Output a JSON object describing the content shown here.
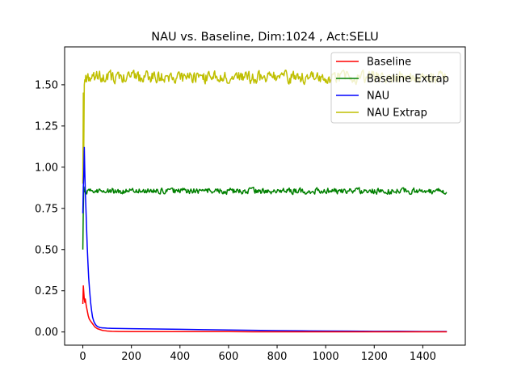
{
  "chart_data": {
    "type": "line",
    "title": "NAU vs. Baseline, Dim:1024 , Act:SELU",
    "xlabel": "",
    "ylabel": "",
    "xlim": [
      -75,
      1575
    ],
    "ylim": [
      -0.08,
      1.73
    ],
    "xticks": [
      0,
      200,
      400,
      600,
      800,
      1000,
      1200,
      1400
    ],
    "yticks": [
      0.0,
      0.25,
      0.5,
      0.75,
      1.0,
      1.25,
      1.5
    ],
    "ytick_labels": [
      "0.00",
      "0.25",
      "0.50",
      "0.75",
      "1.00",
      "1.25",
      "1.50"
    ],
    "grid": false,
    "legend_position": "top-right",
    "series": [
      {
        "name": "Baseline",
        "color": "#ff0000",
        "x": [
          0,
          2,
          4,
          6,
          8,
          10,
          14,
          18,
          22,
          26,
          30,
          35,
          40,
          45,
          50,
          55,
          60,
          70,
          80,
          90,
          100,
          120,
          150,
          200,
          300,
          400,
          500,
          600,
          700,
          800,
          900,
          1000,
          1100,
          1200,
          1300,
          1400,
          1499
        ],
        "y": [
          0.17,
          0.28,
          0.24,
          0.2,
          0.18,
          0.2,
          0.16,
          0.13,
          0.1,
          0.08,
          0.07,
          0.06,
          0.05,
          0.04,
          0.03,
          0.025,
          0.02,
          0.015,
          0.01,
          0.008,
          0.006,
          0.004,
          0.003,
          0.002,
          0.002,
          0.002,
          0.002,
          0.002,
          0.001,
          0.001,
          0.001,
          0.001,
          0.001,
          0.001,
          0.001,
          0.001,
          0.001
        ]
      },
      {
        "name": "Baseline Extrap",
        "color": "#008000",
        "x0": 0,
        "x1": 1499,
        "start_x": [
          0,
          2,
          4,
          6,
          8
        ],
        "start_y": [
          0.5,
          0.75,
          0.88,
          0.86,
          0.85
        ],
        "mean": 0.855,
        "noise_amplitude": 0.025
      },
      {
        "name": "NAU",
        "color": "#0000ff",
        "x": [
          0,
          2,
          4,
          6,
          8,
          10,
          12,
          15,
          18,
          21,
          24,
          28,
          32,
          36,
          40,
          45,
          50,
          55,
          60,
          65,
          70,
          80,
          90,
          100,
          120,
          150,
          200,
          300,
          400,
          500,
          600,
          700,
          800,
          900,
          1000,
          1100,
          1200,
          1300,
          1400,
          1499
        ],
        "y": [
          0.72,
          0.88,
          0.96,
          1.12,
          0.98,
          0.86,
          0.78,
          0.65,
          0.52,
          0.42,
          0.33,
          0.25,
          0.18,
          0.13,
          0.09,
          0.065,
          0.05,
          0.04,
          0.033,
          0.03,
          0.027,
          0.025,
          0.024,
          0.023,
          0.022,
          0.021,
          0.02,
          0.018,
          0.016,
          0.014,
          0.012,
          0.01,
          0.008,
          0.007,
          0.006,
          0.005,
          0.004,
          0.004,
          0.003,
          0.003
        ]
      },
      {
        "name": "NAU Extrap",
        "color": "#bfbf00",
        "x0": 0,
        "x1": 1499,
        "start_x": [
          0,
          2,
          4,
          6,
          8,
          10
        ],
        "start_y": [
          0.9,
          1.45,
          1.12,
          1.5,
          1.53,
          1.52
        ],
        "mean": 1.545,
        "noise_amplitude": 0.05
      }
    ]
  }
}
